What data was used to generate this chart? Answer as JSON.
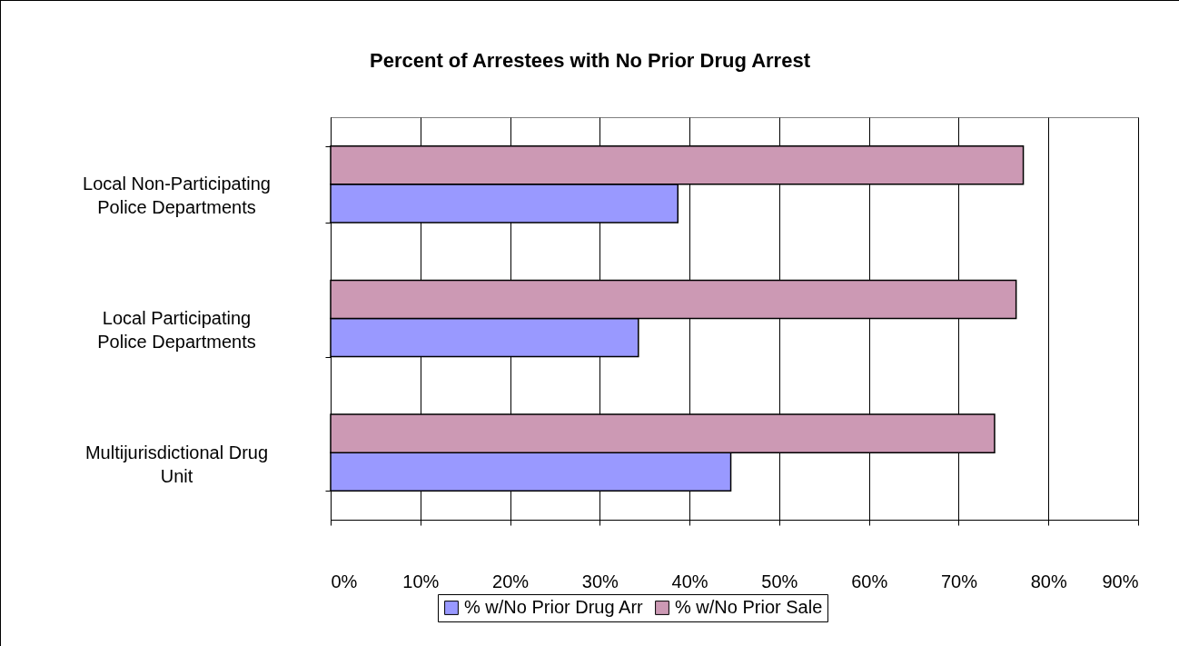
{
  "chart_data": {
    "type": "bar",
    "orientation": "horizontal",
    "title": "Percent of Arrestees with No Prior Drug Arrest",
    "categories": [
      "Local Non-Participating Police Departments",
      "Local Participating Police Departments",
      "Multijurisdictional Drug Unit"
    ],
    "series": [
      {
        "name": "% w/No Prior Drug Arr",
        "color": "#9999ff",
        "values": [
          38.7,
          34.3,
          44.6
        ]
      },
      {
        "name": "% w/No Prior Sale",
        "color": "#cc99b4",
        "values": [
          77.2,
          76.4,
          74.0
        ]
      }
    ],
    "xlim": [
      0,
      90
    ],
    "xticks": [
      {
        "value": 0,
        "label": "0%"
      },
      {
        "value": 10,
        "label": "10%"
      },
      {
        "value": 20,
        "label": "20%"
      },
      {
        "value": 30,
        "label": "30%"
      },
      {
        "value": 40,
        "label": "40%"
      },
      {
        "value": 50,
        "label": "50%"
      },
      {
        "value": 60,
        "label": "60%"
      },
      {
        "value": 70,
        "label": "70%"
      },
      {
        "value": 80,
        "label": "80%"
      },
      {
        "value": 90,
        "label": "90%"
      }
    ],
    "grid": "x",
    "legend": "bottom"
  }
}
